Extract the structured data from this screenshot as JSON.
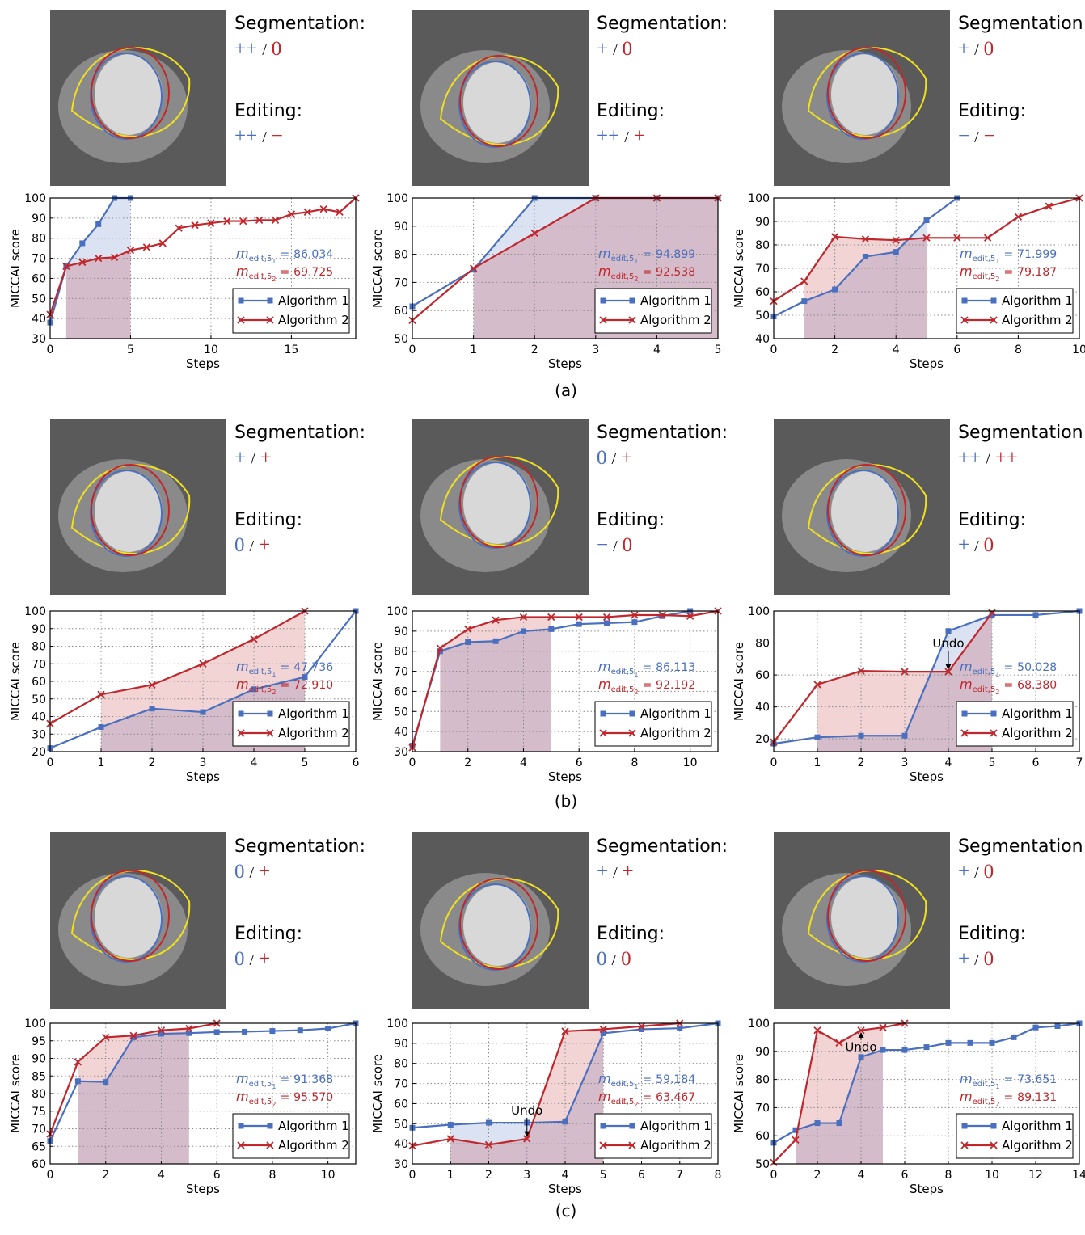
{
  "separator": "/",
  "group_labels": [
    "(a)",
    "(b)",
    "(c)"
  ],
  "panels": [
    {
      "segmentation_label": "Segmentation:",
      "segmentation": [
        "++",
        "0"
      ],
      "editing_label": "Editing:",
      "editing": [
        "++",
        "−"
      ]
    },
    {
      "segmentation_label": "Segmentation:",
      "segmentation": [
        "+",
        "0"
      ],
      "editing_label": "Editing:",
      "editing": [
        "++",
        "+"
      ]
    },
    {
      "segmentation_label": "Segmentation:",
      "segmentation": [
        "+",
        "0"
      ],
      "editing_label": "Editing:",
      "editing": [
        "−",
        "−"
      ]
    },
    {
      "segmentation_label": "Segmentation:",
      "segmentation": [
        "+",
        "+"
      ],
      "editing_label": "Editing:",
      "editing": [
        "0",
        "+"
      ]
    },
    {
      "segmentation_label": "Segmentation:",
      "segmentation": [
        "0",
        "+"
      ],
      "editing_label": "Editing:",
      "editing": [
        "−",
        "0"
      ]
    },
    {
      "segmentation_label": "Segmentation:",
      "segmentation": [
        "++",
        "++"
      ],
      "editing_label": "Editing:",
      "editing": [
        "+",
        "0"
      ]
    },
    {
      "segmentation_label": "Segmentation:",
      "segmentation": [
        "0",
        "+"
      ],
      "editing_label": "Editing:",
      "editing": [
        "0",
        "+"
      ]
    },
    {
      "segmentation_label": "Segmentation:",
      "segmentation": [
        "+",
        "+"
      ],
      "editing_label": "Editing:",
      "editing": [
        "0",
        "0"
      ]
    },
    {
      "segmentation_label": "Segmentation:",
      "segmentation": [
        "+",
        "0"
      ],
      "editing_label": "Editing:",
      "editing": [
        "+",
        "0"
      ]
    }
  ],
  "chart_data": [
    {
      "type": "line",
      "xlabel": "Steps",
      "ylabel": "MICCAI score",
      "xlim": [
        0,
        19
      ],
      "ylim": [
        30,
        100
      ],
      "xticks": [
        0,
        5,
        10,
        15
      ],
      "yticks": [
        30,
        40,
        50,
        60,
        70,
        80,
        90,
        100
      ],
      "grid": true,
      "legend": "lower right",
      "shade": [
        1,
        5
      ],
      "score_symbol": "m",
      "score_subscript": "edit,5",
      "score_relation": "=",
      "series": [
        {
          "name": "Algorithm 1",
          "color": "#4a6fbf",
          "marker": "square",
          "index": "1",
          "score": 86.034,
          "x": [
            0,
            1,
            2,
            3,
            4,
            5
          ],
          "values": [
            38,
            66,
            77.5,
            87,
            100,
            100
          ]
        },
        {
          "name": "Algorithm 2",
          "color": "#c0272d",
          "marker": "cross",
          "index": "2",
          "score": 69.725,
          "x": [
            0,
            1,
            2,
            3,
            4,
            5,
            6,
            7,
            8,
            9,
            10,
            11,
            12,
            13,
            14,
            15,
            16,
            17,
            18,
            19
          ],
          "values": [
            42,
            66,
            68,
            70,
            70.5,
            74,
            75.5,
            77.5,
            85,
            86.5,
            87.5,
            88.5,
            88.5,
            89,
            89,
            92,
            93,
            94.5,
            93,
            100
          ]
        }
      ],
      "annotations": []
    },
    {
      "type": "line",
      "xlabel": "Steps",
      "ylabel": "MICCAI score",
      "xlim": [
        0,
        5
      ],
      "ylim": [
        50,
        100
      ],
      "xticks": [
        0,
        1,
        2,
        3,
        4,
        5
      ],
      "yticks": [
        50,
        60,
        70,
        80,
        90,
        100
      ],
      "grid": true,
      "legend": "lower right",
      "shade": [
        1,
        5
      ],
      "score_symbol": "m",
      "score_subscript": "edit,5",
      "score_relation": "=",
      "series": [
        {
          "name": "Algorithm 1",
          "color": "#4a6fbf",
          "marker": "square",
          "index": "1",
          "score": 94.899,
          "x": [
            0,
            1,
            2,
            3,
            4,
            5
          ],
          "values": [
            61.5,
            74.5,
            100,
            100,
            100,
            100
          ]
        },
        {
          "name": "Algorithm 2",
          "color": "#c0272d",
          "marker": "cross",
          "index": "2",
          "score": 92.538,
          "x": [
            0,
            1,
            2,
            3,
            4,
            5
          ],
          "values": [
            56.5,
            75,
            87.5,
            100,
            100,
            100
          ]
        }
      ],
      "annotations": []
    },
    {
      "type": "line",
      "xlabel": "Steps",
      "ylabel": "MICCAI score",
      "xlim": [
        0,
        10
      ],
      "ylim": [
        40,
        100
      ],
      "xticks": [
        0,
        2,
        4,
        6,
        8,
        10
      ],
      "yticks": [
        40,
        50,
        60,
        70,
        80,
        90,
        100
      ],
      "grid": true,
      "legend": "lower right",
      "shade": [
        1,
        5
      ],
      "score_symbol": "m",
      "score_subscript": "edit,5",
      "score_relation": "=",
      "series": [
        {
          "name": "Algorithm 1",
          "color": "#4a6fbf",
          "marker": "square",
          "index": "1",
          "score": 71.999,
          "x": [
            0,
            1,
            2,
            3,
            4,
            5,
            6
          ],
          "values": [
            49.5,
            56,
            61,
            75,
            77,
            90.5,
            100
          ]
        },
        {
          "name": "Algorithm 2",
          "color": "#c0272d",
          "marker": "cross",
          "index": "2",
          "score": 79.187,
          "x": [
            0,
            1,
            2,
            3,
            4,
            5,
            6,
            7,
            8,
            9,
            10
          ],
          "values": [
            56,
            64.5,
            83.5,
            82.5,
            82,
            83,
            83,
            83,
            92,
            96.5,
            100
          ]
        }
      ],
      "annotations": []
    },
    {
      "type": "line",
      "xlabel": "Steps",
      "ylabel": "MICCAI score",
      "xlim": [
        0,
        6
      ],
      "ylim": [
        20,
        100
      ],
      "xticks": [
        0,
        1,
        2,
        3,
        4,
        5,
        6
      ],
      "yticks": [
        20,
        30,
        40,
        50,
        60,
        70,
        80,
        90,
        100
      ],
      "grid": true,
      "legend": "lower right",
      "shade": [
        1,
        5
      ],
      "score_symbol": "m",
      "score_subscript": "edit,5",
      "score_relation": "=",
      "series": [
        {
          "name": "Algorithm 1",
          "color": "#4a6fbf",
          "marker": "square",
          "index": "1",
          "score": 47.736,
          "x": [
            0,
            1,
            2,
            3,
            4,
            5,
            6
          ],
          "values": [
            22,
            34,
            44.5,
            42.5,
            55.5,
            62.5,
            100
          ]
        },
        {
          "name": "Algorithm 2",
          "color": "#c0272d",
          "marker": "cross",
          "index": "2",
          "score": 72.91,
          "score_label": "72.910",
          "x": [
            0,
            1,
            2,
            3,
            4,
            5
          ],
          "values": [
            36,
            52.5,
            58,
            70,
            84,
            100
          ]
        }
      ],
      "annotations": []
    },
    {
      "type": "line",
      "xlabel": "Steps",
      "ylabel": "MICCAI score",
      "xlim": [
        0,
        11
      ],
      "ylim": [
        30,
        100
      ],
      "xticks": [
        0,
        2,
        4,
        6,
        8,
        10
      ],
      "yticks": [
        30,
        40,
        50,
        60,
        70,
        80,
        90,
        100
      ],
      "grid": true,
      "legend": "lower right",
      "shade": [
        1,
        5
      ],
      "score_symbol": "m",
      "score_subscript": "edit,5",
      "score_relation": "=",
      "series": [
        {
          "name": "Algorithm 1",
          "color": "#4a6fbf",
          "marker": "square",
          "index": "1",
          "score": 86.113,
          "x": [
            0,
            1,
            2,
            3,
            4,
            5,
            6,
            7,
            8,
            9,
            10
          ],
          "values": [
            33,
            80,
            84.5,
            85,
            90,
            91,
            93.5,
            94,
            94.5,
            97.5,
            100
          ]
        },
        {
          "name": "Algorithm 2",
          "color": "#c0272d",
          "marker": "cross",
          "index": "2",
          "score": 92.192,
          "x": [
            0,
            1,
            2,
            3,
            4,
            5,
            6,
            7,
            8,
            9,
            10,
            11
          ],
          "values": [
            32,
            81.5,
            91,
            95.5,
            97,
            97,
            97,
            97,
            98,
            98,
            97.5,
            100
          ]
        }
      ],
      "annotations": []
    },
    {
      "type": "line",
      "xlabel": "Steps",
      "ylabel": "MICCAI score",
      "xlim": [
        0,
        7
      ],
      "ylim": [
        12,
        100
      ],
      "xticks": [
        0,
        1,
        2,
        3,
        4,
        5,
        6,
        7
      ],
      "yticks": [
        20,
        40,
        60,
        80,
        100
      ],
      "grid": true,
      "legend": "lower right",
      "shade": [
        1,
        5
      ],
      "score_symbol": "m",
      "score_subscript": "edit,5",
      "score_relation": "=",
      "series": [
        {
          "name": "Algorithm 1",
          "color": "#4a6fbf",
          "marker": "square",
          "index": "1",
          "score": 50.028,
          "x": [
            0,
            1,
            2,
            3,
            4,
            5,
            6,
            7
          ],
          "values": [
            17,
            21,
            22,
            22,
            87.5,
            97.5,
            97.5,
            100
          ]
        },
        {
          "name": "Algorithm 2",
          "color": "#c0272d",
          "marker": "cross",
          "index": "2",
          "score": 68.38,
          "score_label": "68.380",
          "x": [
            0,
            1,
            2,
            3,
            4,
            5
          ],
          "values": [
            18,
            54,
            62.5,
            62,
            62,
            99
          ]
        }
      ],
      "annotations": [
        {
          "text": "Undo",
          "series": 1,
          "x": 4
        }
      ]
    },
    {
      "type": "line",
      "xlabel": "Steps",
      "ylabel": "MICCAI score",
      "xlim": [
        0,
        11
      ],
      "ylim": [
        60,
        100
      ],
      "xticks": [
        0,
        2,
        4,
        6,
        8,
        10
      ],
      "yticks": [
        60,
        65,
        70,
        75,
        80,
        85,
        90,
        95,
        100
      ],
      "grid": true,
      "legend": "lower right",
      "shade": [
        1,
        5
      ],
      "score_symbol": "m",
      "score_subscript": "edit,5",
      "score_relation": "=",
      "series": [
        {
          "name": "Algorithm 1",
          "color": "#4a6fbf",
          "marker": "square",
          "index": "1",
          "score": 91.368,
          "x": [
            0,
            1,
            2,
            3,
            4,
            5,
            6,
            7,
            8,
            9,
            10,
            11
          ],
          "values": [
            66.5,
            83.5,
            83.3,
            96,
            97,
            97.2,
            97.5,
            97.6,
            97.8,
            98,
            98.5,
            100
          ]
        },
        {
          "name": "Algorithm 2",
          "color": "#c0272d",
          "marker": "cross",
          "index": "2",
          "score": 95.57,
          "score_label": "95.570",
          "x": [
            0,
            1,
            2,
            3,
            4,
            5,
            6
          ],
          "values": [
            68.5,
            89,
            96,
            96.5,
            98,
            98.5,
            100
          ]
        }
      ],
      "annotations": []
    },
    {
      "type": "line",
      "xlabel": "Steps",
      "ylabel": "MICCAI score",
      "xlim": [
        0,
        8
      ],
      "ylim": [
        30,
        100
      ],
      "xticks": [
        0,
        1,
        2,
        3,
        4,
        5,
        6,
        7,
        8
      ],
      "yticks": [
        30,
        40,
        50,
        60,
        70,
        80,
        90,
        100
      ],
      "grid": true,
      "legend": "lower right",
      "shade": [
        1,
        5
      ],
      "score_symbol": "m",
      "score_subscript": "edit,5",
      "score_relation": "=",
      "series": [
        {
          "name": "Algorithm 1",
          "color": "#4a6fbf",
          "marker": "square",
          "index": "1",
          "score": 59.184,
          "x": [
            0,
            1,
            2,
            3,
            4,
            5,
            6,
            7,
            8
          ],
          "values": [
            48,
            49.5,
            50.5,
            50.5,
            51,
            95,
            97,
            97.5,
            100
          ]
        },
        {
          "name": "Algorithm 2",
          "color": "#c0272d",
          "marker": "cross",
          "index": "2",
          "score": 63.467,
          "x": [
            0,
            1,
            2,
            3,
            4,
            5,
            6,
            7
          ],
          "values": [
            39,
            42.5,
            39.5,
            42.5,
            96,
            97,
            98.5,
            100
          ]
        }
      ],
      "annotations": [
        {
          "text": "Undo",
          "series": 1,
          "x": 3
        }
      ]
    },
    {
      "type": "line",
      "xlabel": "Steps",
      "ylabel": "MICCAI score",
      "xlim": [
        0,
        14
      ],
      "ylim": [
        50,
        100
      ],
      "xticks": [
        0,
        2,
        4,
        6,
        8,
        10,
        12,
        14
      ],
      "yticks": [
        50,
        60,
        70,
        80,
        90,
        100
      ],
      "grid": true,
      "legend": "lower right",
      "shade": [
        1,
        5
      ],
      "score_symbol": "m",
      "score_subscript": "edit,5",
      "score_relation": "=",
      "series": [
        {
          "name": "Algorithm 1",
          "color": "#4a6fbf",
          "marker": "square",
          "index": "1",
          "score": 73.651,
          "x": [
            0,
            1,
            2,
            3,
            4,
            5,
            6,
            7,
            8,
            9,
            10,
            11,
            12,
            13,
            14
          ],
          "values": [
            57.5,
            62,
            64.5,
            64.5,
            88,
            90.5,
            90.5,
            91.5,
            93,
            93,
            93,
            95,
            98.5,
            99,
            100
          ]
        },
        {
          "name": "Algorithm 2",
          "color": "#c0272d",
          "marker": "cross",
          "index": "2",
          "score": 89.131,
          "x": [
            0,
            1,
            2,
            3,
            4,
            5,
            6
          ],
          "values": [
            50.5,
            58.5,
            97.5,
            93,
            97.5,
            98.5,
            100
          ]
        }
      ],
      "annotations": [
        {
          "text": "Undo",
          "series": 1,
          "x": 4
        }
      ]
    }
  ]
}
